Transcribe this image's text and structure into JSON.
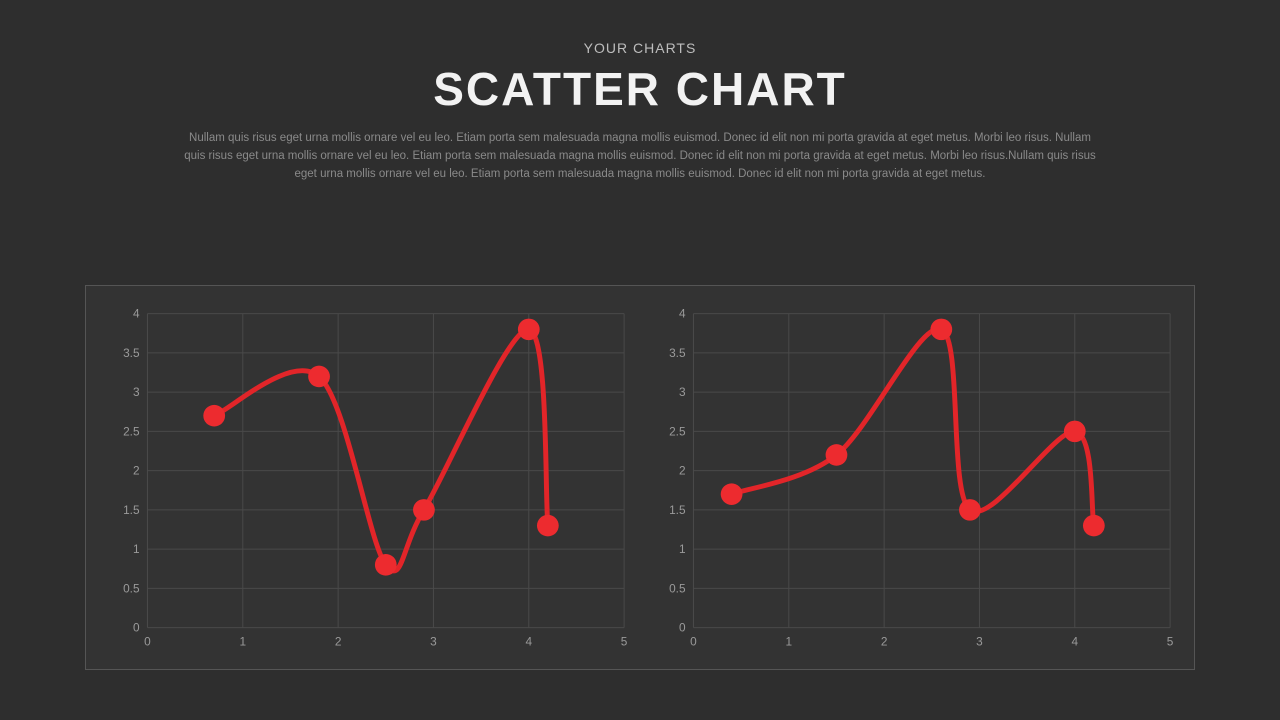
{
  "header": {
    "subtitle": "YOUR CHARTS",
    "title": "SCATTER CHART",
    "description": "Nullam quis risus eget urna mollis ornare vel eu leo. Etiam porta sem malesuada magna mollis euismod. Donec id elit non mi porta gravida at eget metus. Morbi leo risus. Nullam quis risus eget urna mollis ornare vel eu leo. Etiam porta sem malesuada magna mollis euismod. Donec id elit non mi porta gravida at eget metus. Morbi leo risus.Nullam quis risus eget urna mollis ornare vel eu leo. Etiam porta sem malesuada magna mollis euismod. Donec id elit non mi porta gravida at eget metus."
  },
  "colors": {
    "page_bg": "#2e2e2e",
    "panel_bg": "#333333",
    "panel_border": "#555555",
    "grid": "#4a4a4a",
    "axis_text": "#9a9a9a",
    "title_text": "#f2f2f2",
    "subtitle_text": "#bdbdbd",
    "body_text": "#8a8a8a",
    "series": "#e22529",
    "marker_fill": "#ed2b2f"
  },
  "chart_common": {
    "type": "scatter-line",
    "xlim": [
      0,
      5
    ],
    "ylim": [
      0,
      4
    ],
    "xticks": [
      0,
      1,
      2,
      3,
      4,
      5
    ],
    "yticks": [
      0,
      0.5,
      1,
      1.5,
      2,
      2.5,
      3,
      3.5,
      4
    ],
    "grid_on": true,
    "line_width": 5,
    "marker_radius": 11,
    "axis_fontsize": 12,
    "smoothing": "catmull-rom"
  },
  "charts": [
    {
      "id": "chart-left",
      "points": [
        {
          "x": 0.7,
          "y": 2.7
        },
        {
          "x": 1.8,
          "y": 3.2
        },
        {
          "x": 2.5,
          "y": 0.8
        },
        {
          "x": 2.9,
          "y": 1.5
        },
        {
          "x": 4.0,
          "y": 3.8
        },
        {
          "x": 4.2,
          "y": 1.3
        }
      ]
    },
    {
      "id": "chart-right",
      "points": [
        {
          "x": 0.4,
          "y": 1.7
        },
        {
          "x": 1.5,
          "y": 2.2
        },
        {
          "x": 2.6,
          "y": 3.8
        },
        {
          "x": 2.9,
          "y": 1.5
        },
        {
          "x": 4.0,
          "y": 2.5
        },
        {
          "x": 4.2,
          "y": 1.3
        }
      ]
    }
  ]
}
